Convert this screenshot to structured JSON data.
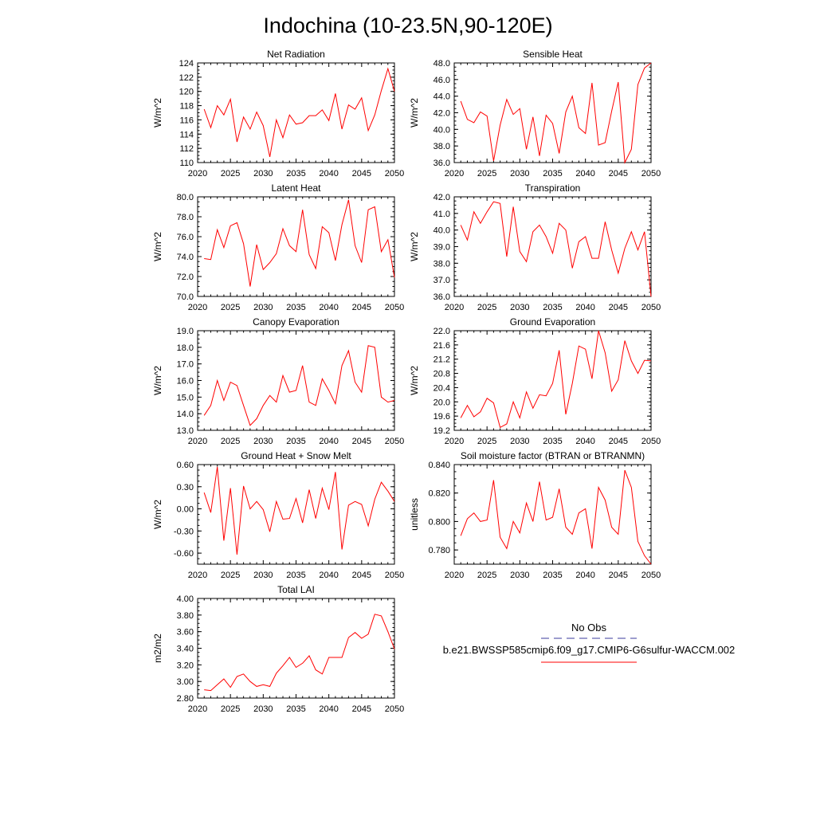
{
  "figure": {
    "title": "Indochina (10-23.5N,90-120E)"
  },
  "legend": {
    "obs_label": "No Obs",
    "obs_color": "#3b3b9e",
    "model_label": "b.e21.BWSSP585cmip6.f09_g17.CMIP6-G6sulfur-WACCM.002",
    "model_color": "#ff0000"
  },
  "chart_data": [
    {
      "type": "line",
      "title": "Net Radiation",
      "ylabel": "W/m^2",
      "xlim": [
        2020,
        2050
      ],
      "ylim": [
        110,
        124
      ],
      "xticks": [
        2020,
        2025,
        2030,
        2035,
        2040,
        2045,
        2050
      ],
      "yticks": [
        "110",
        "112",
        "114",
        "116",
        "118",
        "120",
        "122",
        "124"
      ],
      "series": [
        {
          "color": "#ff0000",
          "x": [
            2021,
            2022,
            2023,
            2024,
            2025,
            2026,
            2027,
            2028,
            2029,
            2030,
            2031,
            2032,
            2033,
            2034,
            2035,
            2036,
            2037,
            2038,
            2039,
            2040,
            2041,
            2042,
            2043,
            2044,
            2045,
            2046,
            2047,
            2048,
            2049,
            2050
          ],
          "values": [
            117.5,
            114.9,
            118.0,
            116.7,
            118.9,
            112.9,
            116.4,
            114.7,
            117.1,
            115.2,
            110.8,
            116.0,
            113.5,
            116.7,
            115.4,
            115.6,
            116.6,
            116.6,
            117.4,
            115.9,
            119.7,
            114.7,
            118.1,
            117.5,
            119.1,
            114.5,
            116.7,
            120.1,
            123.2,
            120.0
          ]
        }
      ]
    },
    {
      "type": "line",
      "title": "Sensible Heat",
      "ylabel": "W/m^2",
      "xlim": [
        2020,
        2050
      ],
      "ylim": [
        36,
        48
      ],
      "xticks": [
        2020,
        2025,
        2030,
        2035,
        2040,
        2045,
        2050
      ],
      "yticks": [
        "36.0",
        "38.0",
        "40.0",
        "42.0",
        "44.0",
        "46.0",
        "48.0"
      ],
      "series": [
        {
          "color": "#ff0000",
          "x": [
            2021,
            2022,
            2023,
            2024,
            2025,
            2026,
            2027,
            2028,
            2029,
            2030,
            2031,
            2032,
            2033,
            2034,
            2035,
            2036,
            2037,
            2038,
            2039,
            2040,
            2041,
            2042,
            2043,
            2044,
            2045,
            2046,
            2047,
            2048,
            2049,
            2050
          ],
          "values": [
            43.4,
            41.2,
            40.8,
            42.1,
            41.6,
            36.2,
            40.5,
            43.6,
            41.8,
            42.5,
            37.6,
            41.5,
            36.8,
            41.7,
            40.7,
            37.1,
            42.1,
            44.0,
            40.2,
            39.5,
            45.6,
            38.1,
            38.4,
            42.2,
            45.7,
            36.0,
            37.6,
            45.4,
            47.4,
            48.0
          ]
        }
      ]
    },
    {
      "type": "line",
      "title": "Latent Heat",
      "ylabel": "W/m^2",
      "xlim": [
        2020,
        2050
      ],
      "ylim": [
        70,
        80
      ],
      "xticks": [
        2020,
        2025,
        2030,
        2035,
        2040,
        2045,
        2050
      ],
      "yticks": [
        "70.0",
        "72.0",
        "74.0",
        "76.0",
        "78.0",
        "80.0"
      ],
      "series": [
        {
          "color": "#ff0000",
          "x": [
            2021,
            2022,
            2023,
            2024,
            2025,
            2026,
            2027,
            2028,
            2029,
            2030,
            2031,
            2032,
            2033,
            2034,
            2035,
            2036,
            2037,
            2038,
            2039,
            2040,
            2041,
            2042,
            2043,
            2044,
            2045,
            2046,
            2047,
            2048,
            2049,
            2050
          ],
          "values": [
            73.8,
            73.7,
            76.7,
            74.9,
            77.1,
            77.4,
            75.3,
            71.0,
            75.2,
            72.7,
            73.4,
            74.3,
            76.8,
            75.1,
            74.5,
            78.7,
            74.2,
            72.8,
            77.0,
            76.4,
            73.6,
            77.2,
            79.7,
            75.1,
            73.4,
            78.7,
            79.0,
            74.5,
            75.7,
            71.9
          ]
        }
      ]
    },
    {
      "type": "line",
      "title": "Transpiration",
      "ylabel": "W/m^2",
      "xlim": [
        2020,
        2050
      ],
      "ylim": [
        36,
        42
      ],
      "xticks": [
        2020,
        2025,
        2030,
        2035,
        2040,
        2045,
        2050
      ],
      "yticks": [
        "36.0",
        "37.0",
        "38.0",
        "39.0",
        "40.0",
        "41.0",
        "42.0"
      ],
      "series": [
        {
          "color": "#ff0000",
          "x": [
            2021,
            2022,
            2023,
            2024,
            2025,
            2026,
            2027,
            2028,
            2029,
            2030,
            2031,
            2032,
            2033,
            2034,
            2035,
            2036,
            2037,
            2038,
            2039,
            2040,
            2041,
            2042,
            2043,
            2044,
            2045,
            2046,
            2047,
            2048,
            2049,
            2050
          ],
          "values": [
            40.3,
            39.4,
            41.1,
            40.4,
            41.1,
            41.7,
            41.6,
            38.4,
            41.4,
            38.7,
            38.1,
            39.9,
            40.3,
            39.6,
            38.6,
            40.4,
            40.0,
            37.7,
            39.3,
            39.6,
            38.3,
            38.3,
            40.5,
            38.8,
            37.4,
            38.9,
            39.9,
            38.8,
            39.9,
            36.0
          ]
        }
      ]
    },
    {
      "type": "line",
      "title": "Canopy Evaporation",
      "ylabel": "W/m^2",
      "xlim": [
        2020,
        2050
      ],
      "ylim": [
        13,
        19
      ],
      "xticks": [
        2020,
        2025,
        2030,
        2035,
        2040,
        2045,
        2050
      ],
      "yticks": [
        "13.0",
        "14.0",
        "15.0",
        "16.0",
        "17.0",
        "18.0",
        "19.0"
      ],
      "series": [
        {
          "color": "#ff0000",
          "x": [
            2021,
            2022,
            2023,
            2024,
            2025,
            2026,
            2027,
            2028,
            2029,
            2030,
            2031,
            2032,
            2033,
            2034,
            2035,
            2036,
            2037,
            2038,
            2039,
            2040,
            2041,
            2042,
            2043,
            2044,
            2045,
            2046,
            2047,
            2048,
            2049,
            2050
          ],
          "values": [
            13.9,
            14.5,
            16.0,
            14.8,
            15.9,
            15.7,
            14.5,
            13.3,
            13.7,
            14.5,
            15.1,
            14.7,
            16.3,
            15.3,
            15.4,
            16.9,
            14.7,
            14.5,
            16.1,
            15.4,
            14.6,
            16.9,
            17.8,
            15.9,
            15.3,
            18.1,
            18.0,
            15.0,
            14.7,
            14.8
          ]
        }
      ]
    },
    {
      "type": "line",
      "title": "Ground Evaporation",
      "ylabel": "W/m^2",
      "xlim": [
        2020,
        2050
      ],
      "ylim": [
        19.2,
        22.0
      ],
      "xticks": [
        2020,
        2025,
        2030,
        2035,
        2040,
        2045,
        2050
      ],
      "yticks": [
        "19.2",
        "19.6",
        "20.0",
        "20.4",
        "20.8",
        "21.2",
        "21.6",
        "22.0"
      ],
      "series": [
        {
          "color": "#ff0000",
          "x": [
            2021,
            2022,
            2023,
            2024,
            2025,
            2026,
            2027,
            2028,
            2029,
            2030,
            2031,
            2032,
            2033,
            2034,
            2035,
            2036,
            2037,
            2038,
            2039,
            2040,
            2041,
            2042,
            2043,
            2044,
            2045,
            2046,
            2047,
            2048,
            2049,
            2050
          ],
          "values": [
            19.55,
            19.9,
            19.58,
            19.72,
            20.1,
            19.97,
            19.28,
            19.38,
            20.0,
            19.55,
            20.28,
            19.82,
            20.2,
            20.17,
            20.52,
            21.45,
            19.65,
            20.52,
            21.57,
            21.48,
            20.65,
            22.0,
            21.38,
            20.3,
            20.62,
            21.72,
            21.15,
            20.8,
            21.17,
            21.15
          ]
        }
      ]
    },
    {
      "type": "line",
      "title": "Ground Heat + Snow Melt",
      "ylabel": "W/m^2",
      "xlim": [
        2020,
        2050
      ],
      "ylim": [
        -0.75,
        0.6
      ],
      "xticks": [
        2020,
        2025,
        2030,
        2035,
        2040,
        2045,
        2050
      ],
      "yticks": [
        "-0.60",
        "-0.30",
        "0.00",
        "0.30",
        "0.60"
      ],
      "series": [
        {
          "color": "#ff0000",
          "x": [
            2021,
            2022,
            2023,
            2024,
            2025,
            2026,
            2027,
            2028,
            2029,
            2030,
            2031,
            2032,
            2033,
            2034,
            2035,
            2036,
            2037,
            2038,
            2039,
            2040,
            2041,
            2042,
            2043,
            2044,
            2045,
            2046,
            2047,
            2048,
            2049,
            2050
          ],
          "values": [
            0.22,
            -0.05,
            0.57,
            -0.43,
            0.28,
            -0.62,
            0.31,
            0.0,
            0.1,
            -0.01,
            -0.31,
            0.1,
            -0.14,
            -0.13,
            0.14,
            -0.19,
            0.26,
            -0.13,
            0.28,
            -0.01,
            0.5,
            -0.55,
            0.05,
            0.1,
            0.06,
            -0.23,
            0.13,
            0.36,
            0.24,
            0.1
          ]
        }
      ]
    },
    {
      "type": "line",
      "title": "Soil moisture factor (BTRAN or BTRANMN)",
      "ylabel": "unitless",
      "xlim": [
        2020,
        2050
      ],
      "ylim": [
        0.77,
        0.84
      ],
      "xticks": [
        2020,
        2025,
        2030,
        2035,
        2040,
        2045,
        2050
      ],
      "yticks": [
        "0.780",
        "0.800",
        "0.820",
        "0.840"
      ],
      "series": [
        {
          "color": "#ff0000",
          "x": [
            2021,
            2022,
            2023,
            2024,
            2025,
            2026,
            2027,
            2028,
            2029,
            2030,
            2031,
            2032,
            2033,
            2034,
            2035,
            2036,
            2037,
            2038,
            2039,
            2040,
            2041,
            2042,
            2043,
            2044,
            2045,
            2046,
            2047,
            2048,
            2049,
            2050
          ],
          "values": [
            0.79,
            0.802,
            0.806,
            0.8,
            0.801,
            0.829,
            0.789,
            0.781,
            0.8,
            0.792,
            0.813,
            0.8,
            0.828,
            0.801,
            0.803,
            0.823,
            0.796,
            0.791,
            0.806,
            0.809,
            0.781,
            0.824,
            0.815,
            0.796,
            0.791,
            0.836,
            0.824,
            0.786,
            0.776,
            0.77
          ]
        }
      ]
    },
    {
      "type": "line",
      "title": "Total LAI",
      "ylabel": "m2/m2",
      "xlim": [
        2020,
        2050
      ],
      "ylim": [
        2.8,
        4.0
      ],
      "xticks": [
        2020,
        2025,
        2030,
        2035,
        2040,
        2045,
        2050
      ],
      "yticks": [
        "2.80",
        "3.00",
        "3.20",
        "3.40",
        "3.60",
        "3.80",
        "4.00"
      ],
      "series": [
        {
          "color": "#ff0000",
          "x": [
            2021,
            2022,
            2023,
            2024,
            2025,
            2026,
            2027,
            2028,
            2029,
            2030,
            2031,
            2032,
            2033,
            2034,
            2035,
            2036,
            2037,
            2038,
            2039,
            2040,
            2041,
            2042,
            2043,
            2044,
            2045,
            2046,
            2047,
            2048,
            2049,
            2050
          ],
          "values": [
            2.9,
            2.89,
            2.96,
            3.03,
            2.93,
            3.06,
            3.09,
            3.0,
            2.94,
            2.96,
            2.94,
            3.1,
            3.19,
            3.29,
            3.17,
            3.22,
            3.31,
            3.14,
            3.09,
            3.29,
            3.29,
            3.29,
            3.53,
            3.59,
            3.52,
            3.57,
            3.81,
            3.79,
            3.6,
            3.39
          ]
        }
      ]
    }
  ]
}
